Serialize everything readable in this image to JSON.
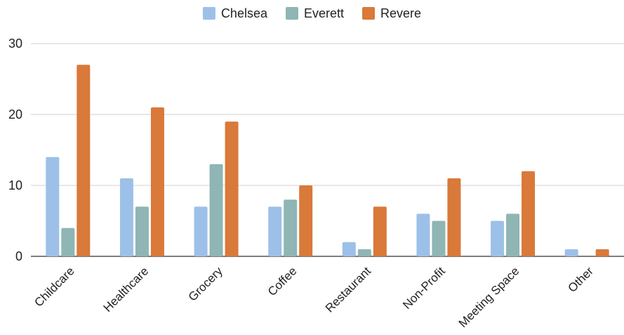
{
  "chart_data": {
    "type": "bar",
    "categories": [
      "Childcare",
      "Healthcare",
      "Grocery",
      "Coffee",
      "Restaurant",
      "Non-Profit",
      "Meeting Space",
      "Other"
    ],
    "series": [
      {
        "name": "Chelsea",
        "color": "#9dc0e8",
        "values": [
          14,
          11,
          7,
          7,
          2,
          6,
          5,
          1
        ]
      },
      {
        "name": "Everett",
        "color": "#8fb5b5",
        "values": [
          4,
          7,
          13,
          8,
          1,
          5,
          6,
          0
        ]
      },
      {
        "name": "Revere",
        "color": "#d9793a",
        "values": [
          27,
          21,
          19,
          10,
          7,
          11,
          12,
          1
        ]
      }
    ],
    "ylim": [
      0,
      30
    ],
    "yticks": [
      0,
      10,
      20,
      30
    ],
    "grid": true,
    "legend": "top-center",
    "title": "",
    "xlabel": "",
    "ylabel": ""
  }
}
